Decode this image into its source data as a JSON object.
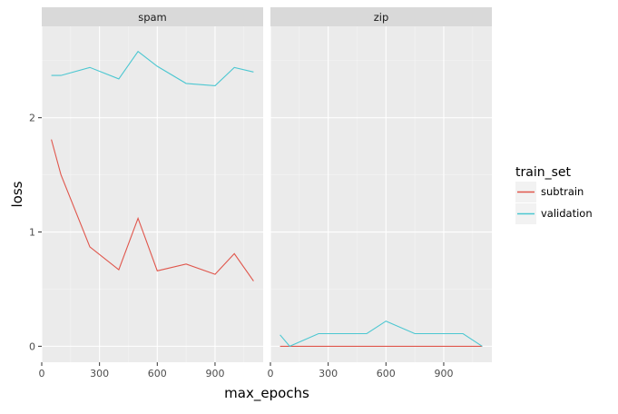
{
  "chart_data": {
    "type": "line",
    "xlabel": "max_epochs",
    "ylabel": "loss",
    "xlim": [
      0,
      1150
    ],
    "ylim": [
      -0.14,
      2.8
    ],
    "x_ticks": [
      0,
      300,
      600,
      900
    ],
    "y_ticks": [
      0,
      1,
      2
    ],
    "grid": true,
    "legend": {
      "title": "train_set",
      "position": "right",
      "entries": [
        {
          "label": "subtrain",
          "color": "#E0564C"
        },
        {
          "label": "validation",
          "color": "#4CC7D1"
        }
      ]
    },
    "facets": [
      {
        "label": "spam",
        "series": [
          {
            "name": "subtrain",
            "color": "#E0564C",
            "x": [
              50,
              100,
              250,
              400,
              500,
              600,
              750,
              900,
              1000,
              1100
            ],
            "y": [
              1.81,
              1.5,
              0.87,
              0.67,
              1.12,
              0.66,
              0.72,
              0.63,
              0.81,
              0.57
            ]
          },
          {
            "name": "validation",
            "color": "#4CC7D1",
            "x": [
              50,
              100,
              250,
              400,
              500,
              600,
              750,
              900,
              1000,
              1100
            ],
            "y": [
              2.37,
              2.37,
              2.44,
              2.34,
              2.58,
              2.45,
              2.3,
              2.28,
              2.44,
              2.4
            ]
          }
        ]
      },
      {
        "label": "zip",
        "series": [
          {
            "name": "subtrain",
            "color": "#E0564C",
            "x": [
              50,
              100,
              250,
              400,
              500,
              600,
              750,
              900,
              1000,
              1100
            ],
            "y": [
              0.0,
              0.0,
              0.0,
              0.0,
              0.0,
              0.0,
              0.0,
              0.0,
              0.0,
              0.0
            ]
          },
          {
            "name": "validation",
            "color": "#4CC7D1",
            "x": [
              50,
              100,
              250,
              400,
              500,
              600,
              750,
              900,
              1000,
              1100
            ],
            "y": [
              0.1,
              0.0,
              0.11,
              0.11,
              0.11,
              0.22,
              0.11,
              0.11,
              0.11,
              0.0
            ]
          }
        ]
      }
    ]
  }
}
